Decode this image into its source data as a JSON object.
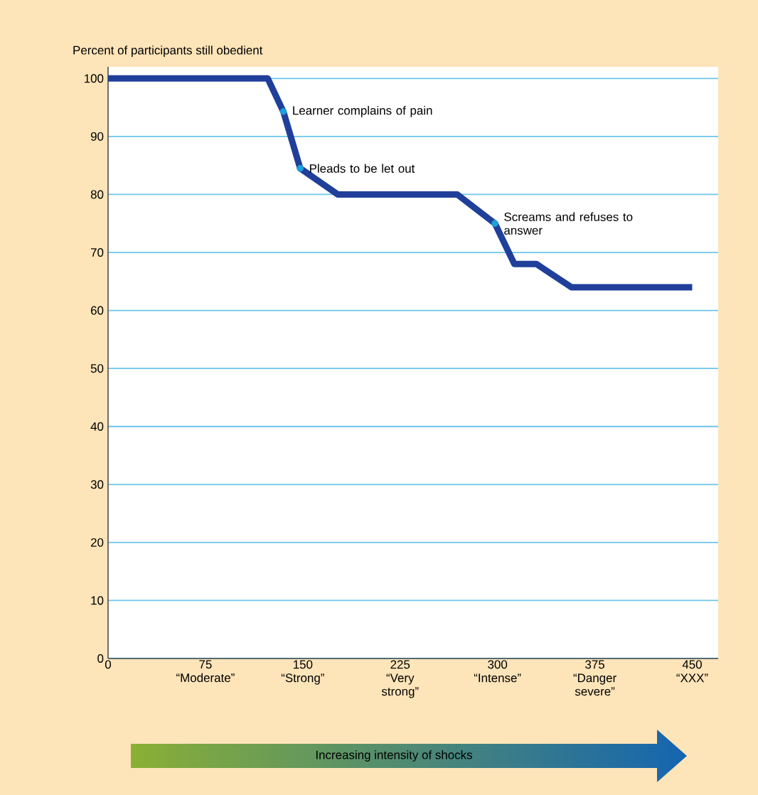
{
  "chart_data": {
    "type": "line",
    "xlabel": "Increasing intensity of shocks",
    "ylabel": "Percent of participants still obedient",
    "x": [
      0,
      123,
      135,
      148,
      177,
      269,
      298,
      313,
      330,
      357,
      450
    ],
    "series": [
      {
        "color": "#203f9a",
        "values": [
          100,
          100,
          94.3,
          84.5,
          80,
          80,
          75,
          68,
          68,
          64,
          64
        ]
      }
    ],
    "xlim": [
      0,
      470
    ],
    "ylim": [
      0,
      102
    ],
    "xticks": [
      0,
      {
        "value": 75,
        "label": "75 “Moderate”"
      },
      {
        "value": 150,
        "label": "150 “Strong”"
      },
      {
        "value": 225,
        "label": "225 “Very strong”"
      },
      {
        "value": 300,
        "label": "300 “Intense”"
      },
      {
        "value": 375,
        "label": "375 “Danger severe”"
      },
      {
        "value": 450,
        "label": "450 “XXX”"
      }
    ],
    "yticks": [
      0,
      10,
      20,
      30,
      40,
      50,
      60,
      70,
      80,
      90,
      100
    ],
    "grid": "y",
    "marker": "none",
    "line_style": "solid",
    "annotations": [
      {
        "text": "Learner complains of pain",
        "x": 135,
        "y": 94.3
      },
      {
        "text": "Pleads to be let out",
        "x": 148,
        "y": 84.5
      },
      {
        "text": "Screams and refuses to answer",
        "x": 298,
        "y": 75
      }
    ]
  }
}
